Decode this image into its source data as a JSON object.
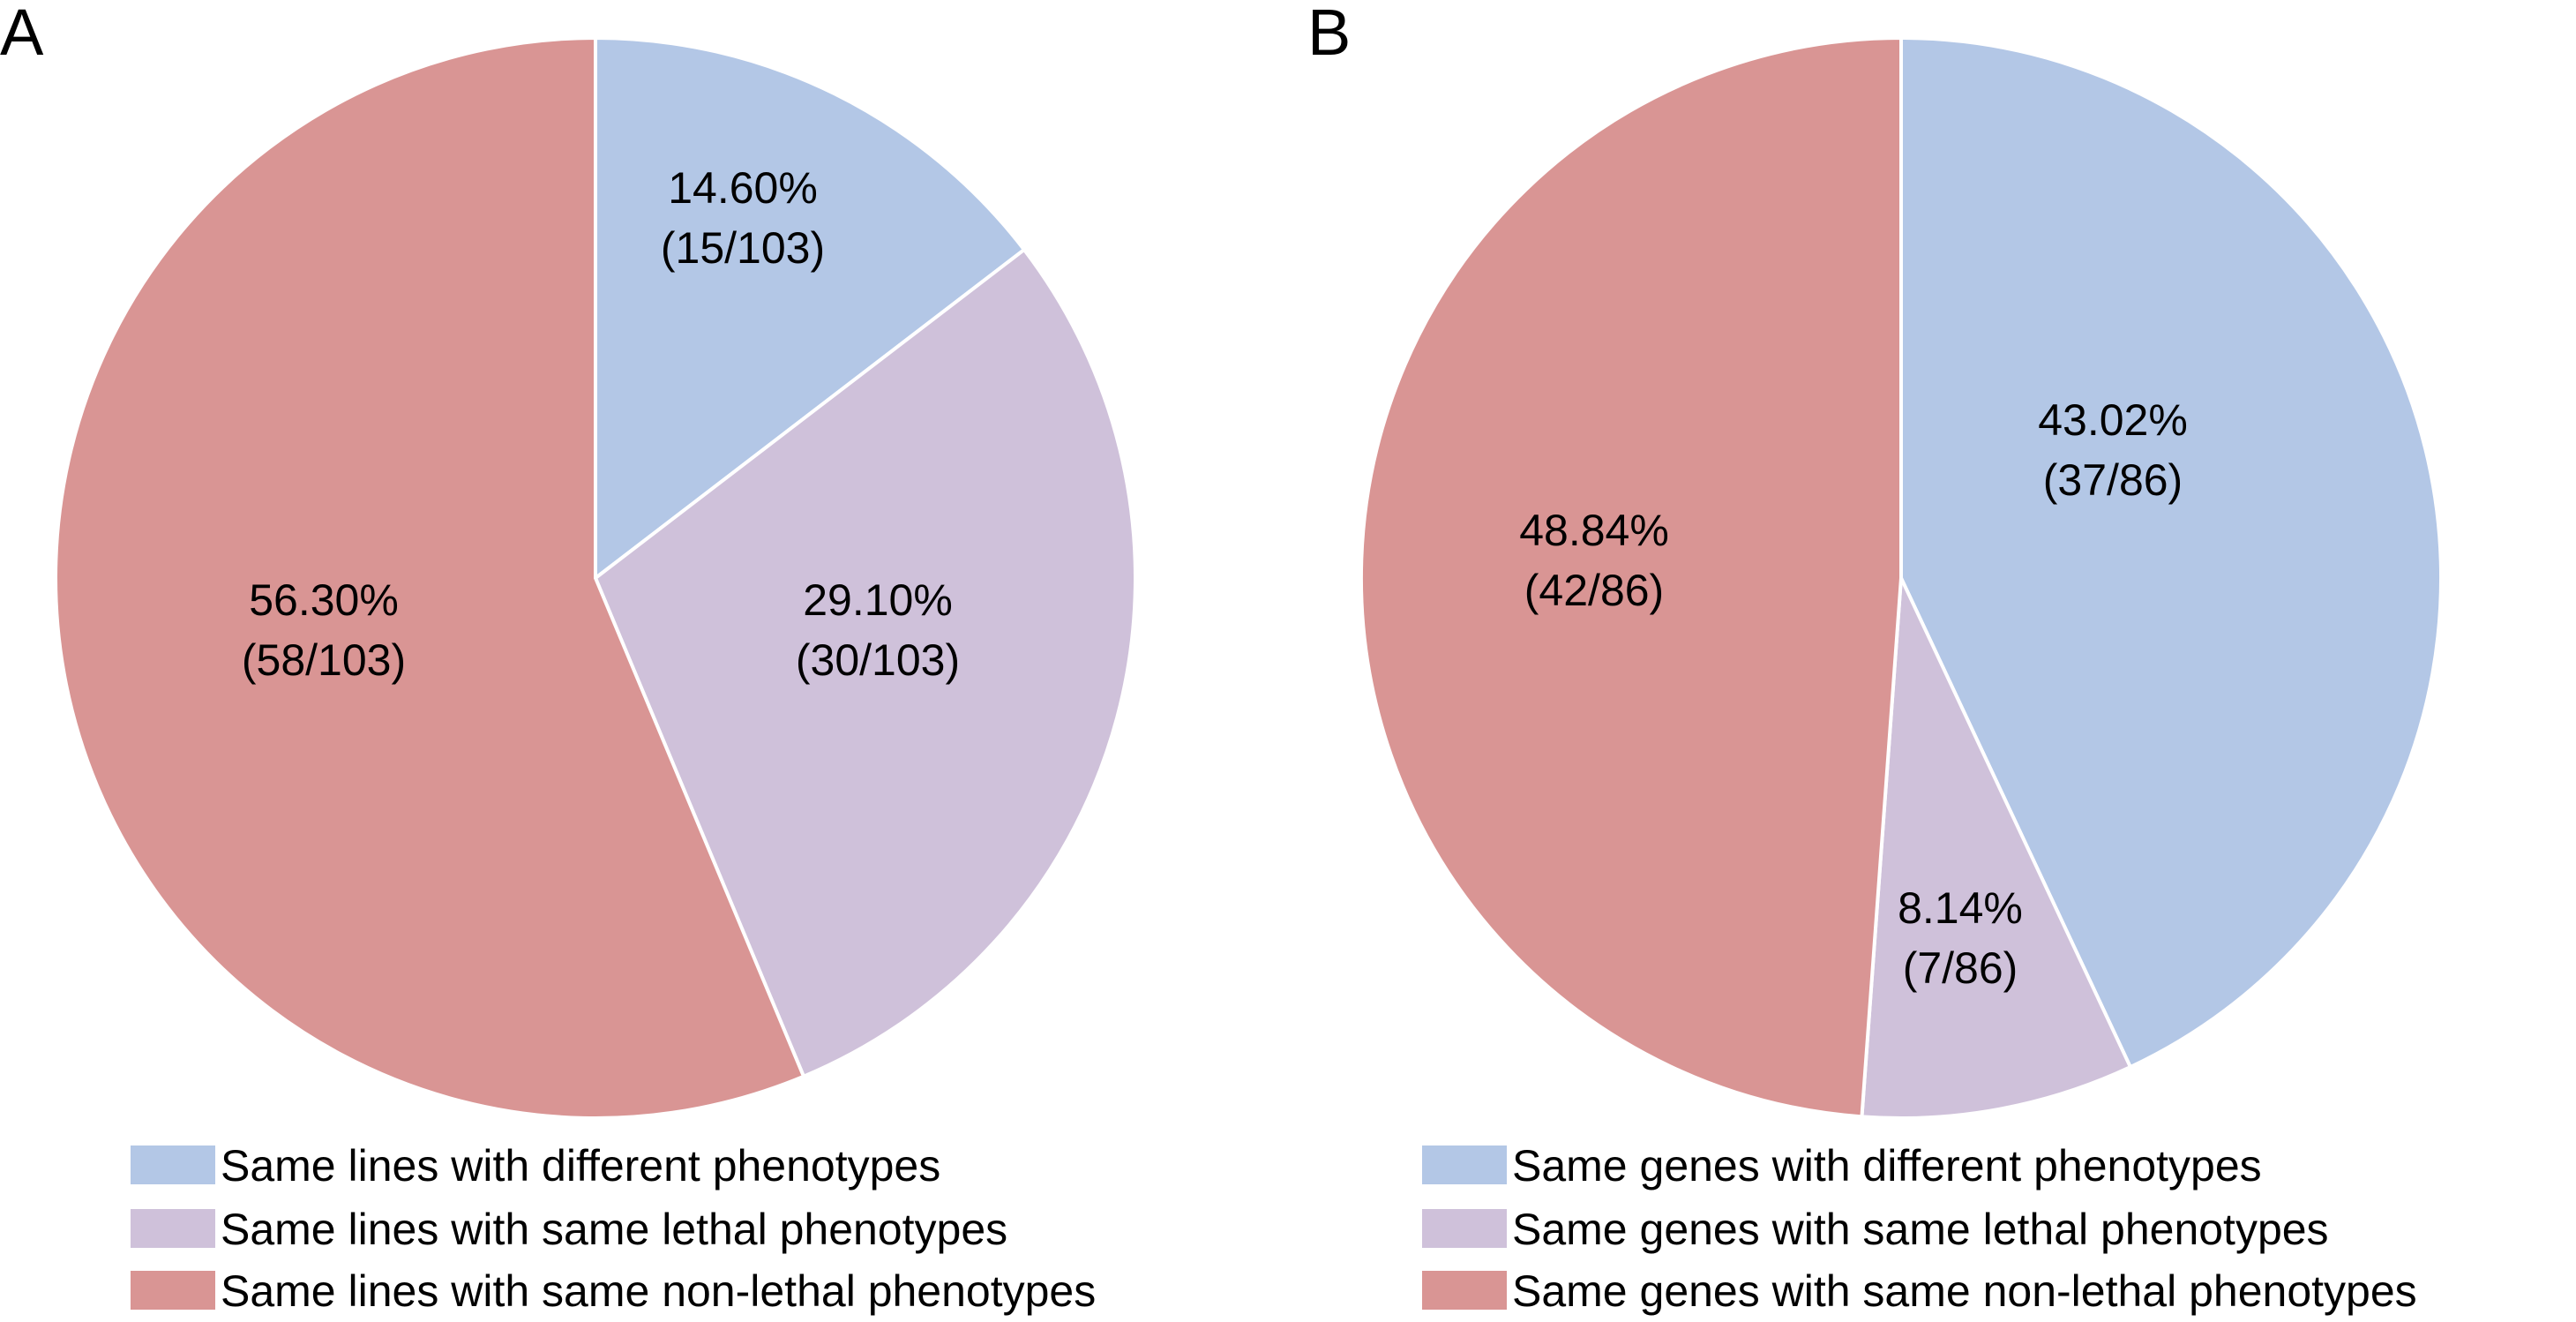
{
  "chart_data": [
    {
      "type": "pie",
      "panel_label": "A",
      "start_angle_deg": 0,
      "direction": "clockwise",
      "slices": [
        {
          "legend": "Same lines with different phenotypes",
          "percent": 14.6,
          "label_percent": "14.60%",
          "label_count": "(15/103)",
          "count": 15,
          "total": 103,
          "color": "#b3c7e6"
        },
        {
          "legend": "Same lines with same lethal phenotypes",
          "percent": 29.1,
          "label_percent": "29.10%",
          "label_count": "(30/103)",
          "count": 30,
          "total": 103,
          "color": "#cfc1da"
        },
        {
          "legend": "Same lines with same non-lethal phenotypes",
          "percent": 56.3,
          "label_percent": "56.30%",
          "label_count": "(58/103)",
          "count": 58,
          "total": 103,
          "color": "#d99594"
        }
      ],
      "legend_position": "bottom"
    },
    {
      "type": "pie",
      "panel_label": "B",
      "start_angle_deg": 0,
      "direction": "clockwise",
      "slices": [
        {
          "legend": "Same genes with different phenotypes",
          "percent": 43.02,
          "label_percent": "43.02%",
          "label_count": "(37/86)",
          "count": 37,
          "total": 86,
          "color": "#b3c7e6"
        },
        {
          "legend": "Same genes with same lethal phenotypes",
          "percent": 8.14,
          "label_percent": "8.14%",
          "label_count": "(7/86)",
          "count": 7,
          "total": 86,
          "color": "#cfc1da"
        },
        {
          "legend": "Same genes with same non-lethal phenotypes",
          "percent": 48.84,
          "label_percent": "48.84%",
          "label_count": "(42/86)",
          "count": 42,
          "total": 86,
          "color": "#d99594"
        }
      ],
      "legend_position": "bottom"
    }
  ]
}
